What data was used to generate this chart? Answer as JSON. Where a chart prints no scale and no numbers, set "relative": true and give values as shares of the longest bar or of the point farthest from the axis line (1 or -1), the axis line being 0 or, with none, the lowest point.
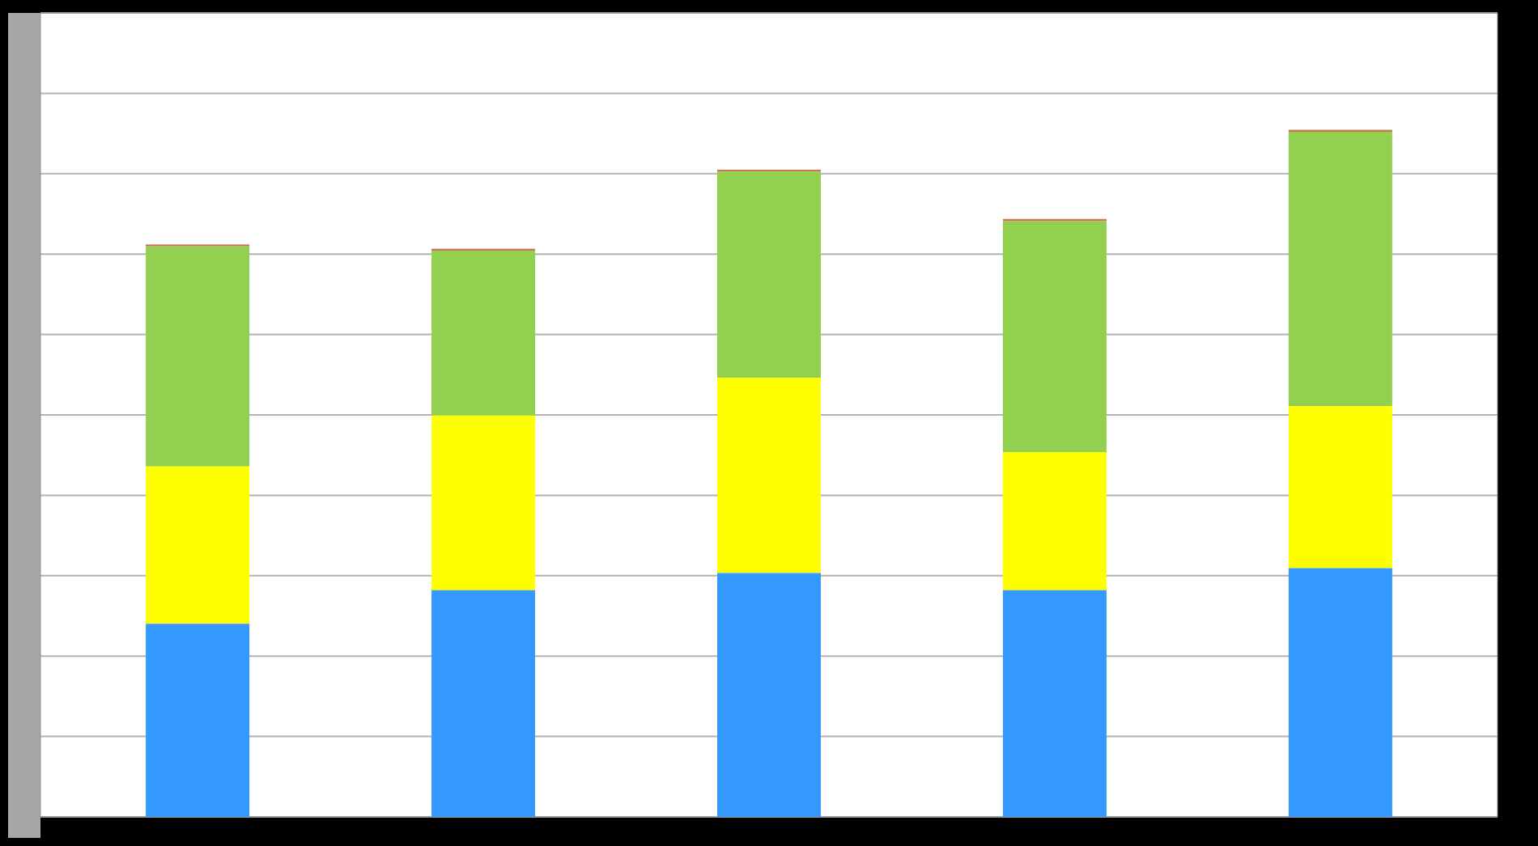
{
  "chart_data": {
    "type": "bar",
    "stacked": true,
    "relative": true,
    "grid": "y",
    "categories": [
      null,
      null,
      null,
      null,
      null
    ],
    "series": [
      {
        "color": "#3399ff",
        "values": [
          0.281,
          0.33,
          0.355,
          0.33,
          0.362
        ]
      },
      {
        "color": "#ffff00",
        "values": [
          0.229,
          0.254,
          0.284,
          0.201,
          0.236
        ]
      },
      {
        "color": "#92d050",
        "values": [
          0.32,
          0.24,
          0.3,
          0.336,
          0.399
        ]
      },
      {
        "color": "#c87850",
        "values": [
          0.003,
          0.003,
          0.003,
          0.003,
          0.003
        ]
      }
    ]
  }
}
